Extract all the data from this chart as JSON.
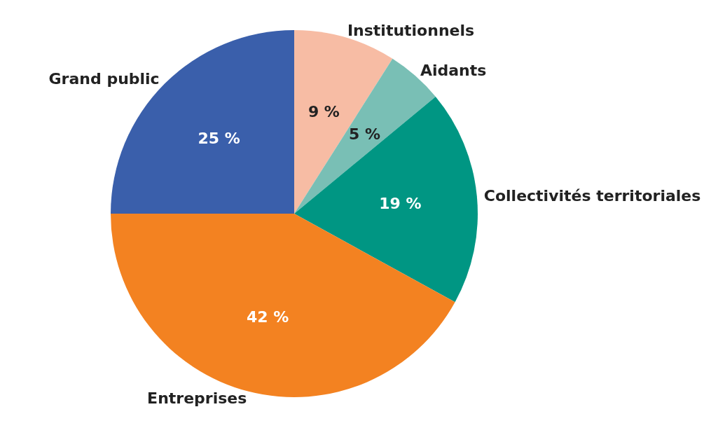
{
  "chart_data": {
    "type": "pie",
    "categories": [
      "Institutionnels",
      "Aidants",
      "Collectivités territoriales",
      "Entreprises",
      "Grand public"
    ],
    "values": [
      9,
      5,
      19,
      42,
      25
    ],
    "colors": [
      "#f7bca4",
      "#79bfb5",
      "#009683",
      "#f38221",
      "#3a5fab"
    ],
    "value_labels": [
      "9 %",
      "5 %",
      "19 %",
      "42 %",
      "25 %"
    ],
    "legend": false
  }
}
